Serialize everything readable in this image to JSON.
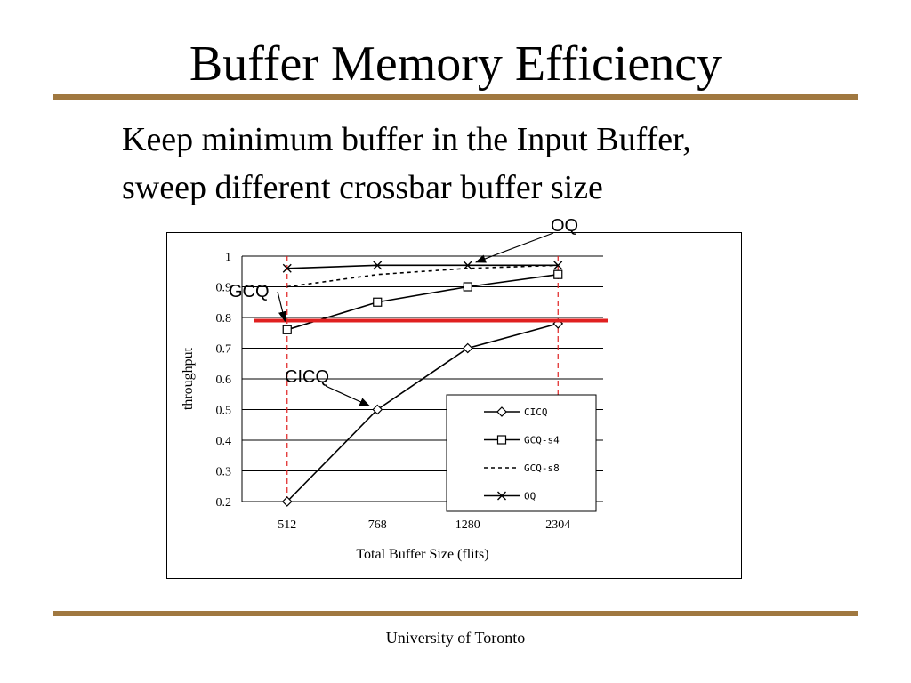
{
  "slide": {
    "title": "Buffer Memory Efficiency",
    "subtitle_line1": "Keep minimum buffer in the Input Buffer,",
    "subtitle_line2": "sweep different crossbar buffer size",
    "footer": "University of Toronto"
  },
  "colors": {
    "rule": "#a07840",
    "threshold_line": "#e02020",
    "guide_line": "#e02020"
  },
  "chart_data": {
    "type": "line",
    "xlabel": "Total Buffer Size (flits)",
    "ylabel": "throughput",
    "categories": [
      "512",
      "768",
      "1280",
      "2304"
    ],
    "ylim": [
      0.2,
      1
    ],
    "yticks": [
      "0.2",
      "0.3",
      "0.4",
      "0.5",
      "0.6",
      "0.7",
      "0.8",
      "0.9",
      "1"
    ],
    "grid": true,
    "legend_position": "bottom-right",
    "series": [
      {
        "name": "CICQ",
        "marker": "diamond",
        "dash": "solid",
        "values": [
          0.2,
          0.5,
          0.7,
          0.78
        ]
      },
      {
        "name": "GCQ-s4",
        "marker": "square",
        "dash": "solid",
        "values": [
          0.76,
          0.85,
          0.9,
          0.94
        ]
      },
      {
        "name": "GCQ-s8",
        "marker": "none",
        "dash": "dashed",
        "values": [
          0.9,
          0.94,
          0.96,
          0.97
        ]
      },
      {
        "name": "OQ",
        "marker": "x",
        "dash": "solid",
        "values": [
          0.96,
          0.97,
          0.97,
          0.97
        ]
      }
    ],
    "threshold": 0.79,
    "guides": [
      "512",
      "2304"
    ],
    "annotations": [
      {
        "text": "OQ",
        "target_series": "OQ",
        "target_index": 2
      },
      {
        "text": "GCQ",
        "target_series": "GCQ-s4",
        "target_index": 0
      },
      {
        "text": "CICQ",
        "target_series": "CICQ",
        "target_index": 1
      }
    ]
  }
}
